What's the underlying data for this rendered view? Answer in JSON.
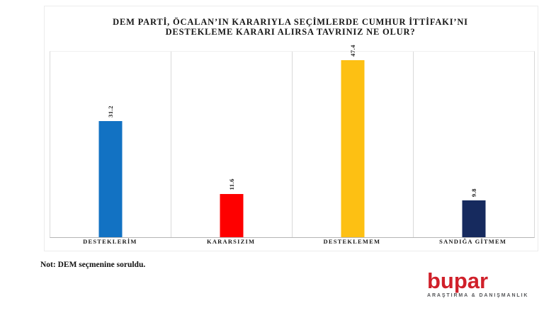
{
  "title": {
    "line1": "DEM PARTİ, ÖCALAN’IN KARARIYLA SEÇİMLERDE CUMHUR İTTİFAKI’NI",
    "line2": "DESTEKLEME KARARI ALIRSA TAVRINIZ NE OLUR?"
  },
  "note": "Not: DEM seçmenine soruldu.",
  "logo": {
    "name": "bupar",
    "tagline": "ARAŞTIRMA & DANIŞMANLIK",
    "color": "#d0202a"
  },
  "chart_data": {
    "type": "bar",
    "title": "DEM PARTİ, ÖCALAN’IN KARARIYLA SEÇİMLERDE CUMHUR İTTİFAKI’NI DESTEKLEME KARARI ALIRSA TAVRINIZ NE OLUR?",
    "categories": [
      "DESTEKLERİM",
      "KARARSIZIM",
      "DESTEKLEMEM",
      "SANDIĞA GİTMEM"
    ],
    "values": [
      31.2,
      11.6,
      47.4,
      9.8
    ],
    "value_labels": [
      "31.2",
      "11.6",
      "47.4",
      "9.8"
    ],
    "bar_colors": [
      "#1272c3",
      "#fe0000",
      "#fdc013",
      "#162a5e"
    ],
    "xlabel": "",
    "ylabel": "",
    "ylim": [
      0,
      49.7
    ],
    "grid": "vertical-category-separators",
    "legend": "none",
    "value_label_rotation": "vertical-bottom-to-top",
    "note": "Not: DEM seçmenine soruldu."
  }
}
